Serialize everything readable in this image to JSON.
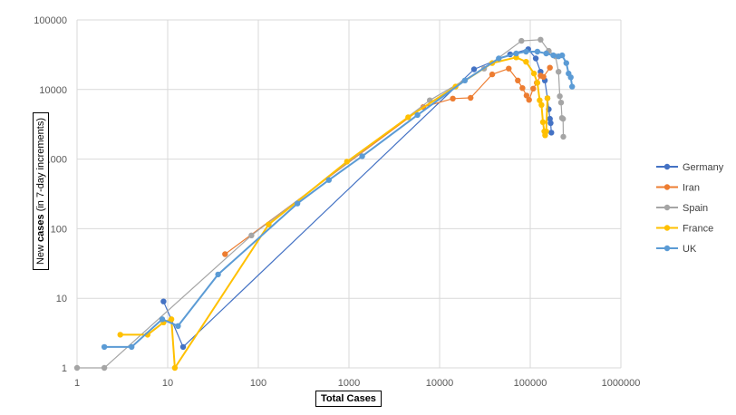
{
  "chart_data": {
    "type": "line",
    "x_scale": "log",
    "y_scale": "log",
    "xlim": [
      1,
      1000000
    ],
    "ylim": [
      1,
      100000
    ],
    "xlabel": "Total Cases",
    "ylabel_parts": [
      "New ",
      "cases",
      " (in 7-day increments)"
    ],
    "x_ticks": [
      "1",
      "10",
      "100",
      "1000",
      "10000",
      "100000",
      "1000000"
    ],
    "y_ticks": [
      "1",
      "10",
      "100",
      "1000",
      "10000",
      "100000"
    ],
    "grid": true,
    "legend_position": "right",
    "series": [
      {
        "name": "Germany",
        "color": "#4472c4",
        "points": [
          [
            9,
            9
          ],
          [
            14.8,
            2
          ],
          [
            24000,
            19500
          ],
          [
            60000,
            32000
          ],
          [
            95000,
            38000
          ],
          [
            115000,
            28000
          ],
          [
            130000,
            18000
          ],
          [
            145000,
            13500
          ],
          [
            155000,
            7500
          ],
          [
            160000,
            5200
          ],
          [
            165000,
            3800
          ],
          [
            168000,
            3300
          ],
          [
            171000,
            2400
          ]
        ]
      },
      {
        "name": "Iran",
        "color": "#ed7d31",
        "points": [
          [
            43,
            43
          ],
          [
            6600,
            5600
          ],
          [
            14000,
            7400
          ],
          [
            22000,
            7600
          ],
          [
            38000,
            16500
          ],
          [
            58000,
            20000
          ],
          [
            73000,
            13500
          ],
          [
            82000,
            10500
          ],
          [
            91000,
            8200
          ],
          [
            97000,
            7100
          ],
          [
            108000,
            10300
          ],
          [
            118000,
            12500
          ],
          [
            130000,
            15800
          ],
          [
            140000,
            15200
          ],
          [
            165000,
            20600
          ]
        ]
      },
      {
        "name": "Spain",
        "color": "#a5a5a5",
        "points": [
          [
            1,
            1
          ],
          [
            2,
            1
          ],
          [
            84,
            80
          ],
          [
            7800,
            7000
          ],
          [
            31000,
            20000
          ],
          [
            80000,
            50000
          ],
          [
            130000,
            52000
          ],
          [
            160000,
            36000
          ],
          [
            190000,
            30000
          ],
          [
            205000,
            18000
          ],
          [
            212000,
            8000
          ],
          [
            219000,
            6500
          ],
          [
            224000,
            3900
          ],
          [
            230000,
            3800
          ],
          [
            232000,
            2100
          ]
        ]
      },
      {
        "name": "France",
        "color": "#ffc000",
        "points": [
          [
            3,
            3
          ],
          [
            6,
            3
          ],
          [
            9,
            4.5
          ],
          [
            11,
            5
          ],
          [
            12,
            1
          ],
          [
            130,
            115
          ],
          [
            950,
            920
          ],
          [
            4500,
            4000
          ],
          [
            15000,
            11000
          ],
          [
            38000,
            24000
          ],
          [
            70000,
            29000
          ],
          [
            90000,
            25000
          ],
          [
            110000,
            17000
          ],
          [
            120000,
            12500
          ],
          [
            127000,
            7000
          ],
          [
            133000,
            6000
          ],
          [
            138000,
            3400
          ],
          [
            143000,
            2500
          ],
          [
            146000,
            2200
          ],
          [
            150000,
            2500
          ],
          [
            155000,
            7500
          ]
        ]
      },
      {
        "name": "UK",
        "color": "#5b9bd5",
        "points": [
          [
            2,
            2
          ],
          [
            4,
            2
          ],
          [
            8.7,
            5
          ],
          [
            13,
            4
          ],
          [
            36,
            22
          ],
          [
            270,
            230
          ],
          [
            600,
            500
          ],
          [
            1400,
            1100
          ],
          [
            5700,
            4300
          ],
          [
            19000,
            13500
          ],
          [
            45000,
            28000
          ],
          [
            70000,
            33000
          ],
          [
            90000,
            35000
          ],
          [
            120000,
            35000
          ],
          [
            150000,
            33000
          ],
          [
            180000,
            31000
          ],
          [
            205000,
            30000
          ],
          [
            225000,
            31000
          ],
          [
            250000,
            24000
          ],
          [
            265000,
            17000
          ],
          [
            280000,
            15000
          ],
          [
            290000,
            11000
          ]
        ]
      }
    ]
  }
}
